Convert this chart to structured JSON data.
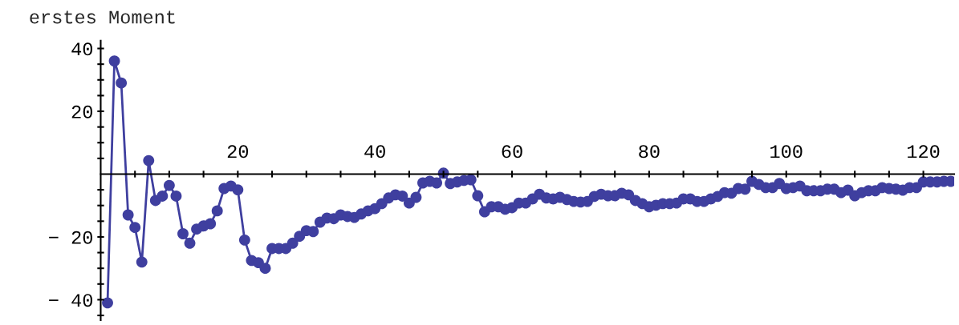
{
  "chart_data": {
    "type": "line",
    "ylabel": "erstes Moment",
    "x": [
      1,
      2,
      3,
      4,
      5,
      6,
      7,
      8,
      9,
      10,
      11,
      12,
      13,
      14,
      15,
      16,
      17,
      18,
      19,
      20,
      21,
      22,
      23,
      24,
      25,
      26,
      27,
      28,
      29,
      30,
      31,
      32,
      33,
      34,
      35,
      36,
      37,
      38,
      39,
      40,
      41,
      42,
      43,
      44,
      45,
      46,
      47,
      48,
      49,
      50,
      51,
      52,
      53,
      54,
      55,
      56,
      57,
      58,
      59,
      60,
      61,
      62,
      63,
      64,
      65,
      66,
      67,
      68,
      69,
      70,
      71,
      72,
      73,
      74,
      75,
      76,
      77,
      78,
      79,
      80,
      81,
      82,
      83,
      84,
      85,
      86,
      87,
      88,
      89,
      90,
      91,
      92,
      93,
      94,
      95,
      96,
      97,
      98,
      99,
      100,
      101,
      102,
      103,
      104,
      105,
      106,
      107,
      108,
      109,
      110,
      111,
      112,
      113,
      114,
      115,
      116,
      117,
      118,
      119,
      120,
      121,
      122,
      123,
      124
    ],
    "series": [
      {
        "color": "#3f3f9f",
        "values": [
          -41,
          36,
          29,
          -13,
          -17,
          -28,
          4.3,
          -8.4,
          -7,
          -3.6,
          -7,
          -19,
          -22,
          -17.5,
          -16.5,
          -15.8,
          -11.7,
          -4.6,
          -3.8,
          -5,
          -21,
          -27.5,
          -28.2,
          -30,
          -23.7,
          -23.7,
          -23.7,
          -22,
          -19.8,
          -18,
          -18.3,
          -15.3,
          -14,
          -14.2,
          -13,
          -13.5,
          -13.8,
          -12.7,
          -11.7,
          -11,
          -9.4,
          -7.6,
          -6.6,
          -7,
          -9.2,
          -7.4,
          -2.8,
          -2.3,
          -2.8,
          0.3,
          -3,
          -2.5,
          -2,
          -1.8,
          -6.9,
          -12,
          -10.4,
          -10.4,
          -11.2,
          -10.7,
          -9.2,
          -9.2,
          -7.9,
          -6.4,
          -7.6,
          -7.9,
          -7.4,
          -8.1,
          -8.7,
          -8.9,
          -8.7,
          -7.1,
          -6.4,
          -6.9,
          -6.9,
          -6.1,
          -6.6,
          -8.4,
          -9.4,
          -10.4,
          -9.9,
          -9.4,
          -9.4,
          -9.2,
          -7.9,
          -7.9,
          -8.7,
          -8.7,
          -7.9,
          -7.1,
          -5.9,
          -6.1,
          -4.6,
          -4.8,
          -2.3,
          -3.3,
          -4.3,
          -4.3,
          -3,
          -4.6,
          -4.3,
          -3.8,
          -5.3,
          -5.3,
          -5.3,
          -4.8,
          -4.8,
          -5.9,
          -5.1,
          -6.9,
          -5.9,
          -5.3,
          -5.3,
          -4.3,
          -4.6,
          -4.8,
          -5.1,
          -4.3,
          -4.3,
          -2.5,
          -2.5,
          -2.5,
          -2.3,
          -2.3
        ]
      }
    ],
    "marker": "circle",
    "line_style": "solid",
    "grid": false,
    "legend": false,
    "xlim": [
      0,
      124.5
    ],
    "ylim": [
      -46.5,
      42.5
    ],
    "xticks": [
      {
        "value": 5,
        "label": null
      },
      {
        "value": 10,
        "label": null
      },
      {
        "value": 15,
        "label": null
      },
      20,
      {
        "value": 25,
        "label": null
      },
      {
        "value": 30,
        "label": null
      },
      {
        "value": 35,
        "label": null
      },
      40,
      {
        "value": 45,
        "label": null
      },
      {
        "value": 50,
        "label": null
      },
      {
        "value": 55,
        "label": null
      },
      60,
      {
        "value": 65,
        "label": null
      },
      {
        "value": 70,
        "label": null
      },
      {
        "value": 75,
        "label": null
      },
      80,
      {
        "value": 85,
        "label": null
      },
      {
        "value": 90,
        "label": null
      },
      {
        "value": 95,
        "label": null
      },
      100,
      {
        "value": 105,
        "label": null
      },
      {
        "value": 110,
        "label": null
      },
      {
        "value": 115,
        "label": null
      },
      120
    ],
    "yticks": [
      {
        "value": -45,
        "label": null
      },
      {
        "value": -40,
        "label": "− 40"
      },
      {
        "value": -35,
        "label": null
      },
      {
        "value": -30,
        "label": null
      },
      {
        "value": -25,
        "label": null
      },
      {
        "value": -20,
        "label": "− 20"
      },
      {
        "value": -15,
        "label": null
      },
      {
        "value": -10,
        "label": null
      },
      {
        "value": -5,
        "label": null
      },
      {
        "value": 5,
        "label": null
      },
      {
        "value": 10,
        "label": null
      },
      {
        "value": 15,
        "label": null
      },
      20,
      {
        "value": 25,
        "label": null
      },
      {
        "value": 30,
        "label": null
      },
      {
        "value": 35,
        "label": null
      },
      40
    ]
  }
}
